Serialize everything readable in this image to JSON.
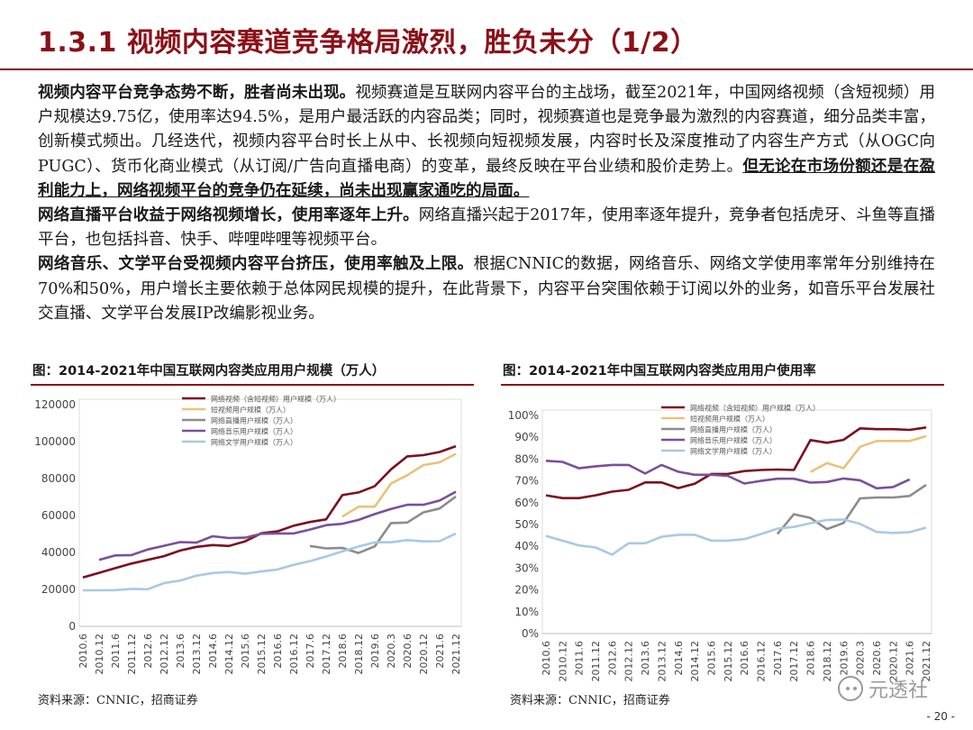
{
  "header": {
    "title": "1.3.1 视频内容赛道竞争格局激烈，胜负未分（1/2）"
  },
  "paragraphs": [
    {
      "lead": "视频内容平台竞争态势不断，胜者尚未出现。",
      "text": "视频赛道是互联网内容平台的主战场，截至2021年，中国网络视频（含短视频）用户规模达9.75亿，使用率达94.5%，是用户最活跃的内容品类；同时，视频赛道也是竞争最为激烈的内容赛道，细分品类丰富，创新模式频出。几经迭代，视频内容平台时长上从中、长视频向短视频发展，内容时长及深度推动了内容生产方式（从OGC向PUGC）、货币化商业模式（从订阅/广告向直播电商）的变革，最终反映在平台业绩和股价走势上。",
      "emphasis": "但无论在市场份额还是在盈利能力上，网络视频平台的竞争仍在延续，尚未出现赢家通吃的局面。"
    },
    {
      "lead": "网络直播平台收益于网络视频增长，使用率逐年上升。",
      "text": "网络直播兴起于2017年，使用率逐年提升，竞争者包括虎牙、斗鱼等直播平台，也包括抖音、快手、哔哩哔哩等视频平台。",
      "emphasis": ""
    },
    {
      "lead": "网络音乐、文学平台受视频内容平台挤压，使用率触及上限。",
      "text": "根据CNNIC的数据，网络音乐、网络文学使用率常年分别维持在70%和50%，用户增长主要依赖于总体网民规模的提升，在此背景下，内容平台突围依赖于订阅以外的业务，如音乐平台发展社交直播、文学平台发展IP改编影视业务。",
      "emphasis": ""
    }
  ],
  "figures": {
    "left_title": "图：2014-2021年中国互联网内容类应用用户规模（万人）",
    "right_title": "图：2014-2021年中国互联网内容类应用用户使用率",
    "left_source": "资料来源：CNNIC，招商证券",
    "right_source": "资料来源：CNNIC，招商证券"
  },
  "footer": {
    "page": "- 20 -",
    "watermark": "元透社"
  },
  "chart_data": [
    {
      "type": "line",
      "title": "图：2014-2021年中国互联网内容类应用用户规模（万人）",
      "x": [
        "2010.6",
        "2010.12",
        "2011.6",
        "2011.12",
        "2012.6",
        "2012.12",
        "2013.6",
        "2013.12",
        "2014.6",
        "2014.12",
        "2015.6",
        "2015.12",
        "2016.6",
        "2016.12",
        "2017.6",
        "2017.12",
        "2018.6",
        "2018.12",
        "2019.6",
        "2020.3",
        "2020.6",
        "2020.12",
        "2021.6",
        "2021.12"
      ],
      "ylim": [
        0,
        120000
      ],
      "yticks": [
        "0",
        "20000",
        "40000",
        "60000",
        "80000",
        "100000",
        "120000"
      ],
      "legend_position": "top-right",
      "series": [
        {
          "name": "网络视频（含短视频）用户规模（万人）",
          "color": "#7b1020",
          "values": [
            26500,
            29000,
            31500,
            34000,
            36000,
            38000,
            41000,
            43000,
            44000,
            43500,
            46000,
            50400,
            51400,
            54500,
            56500,
            57900,
            71000,
            72500,
            75900,
            85000,
            92000,
            92700,
            94400,
            97500
          ]
        },
        {
          "name": "短视频用户规模（万人）",
          "color": "#e8c27a",
          "values": [
            null,
            null,
            null,
            null,
            null,
            null,
            null,
            null,
            null,
            null,
            null,
            null,
            null,
            null,
            null,
            null,
            59400,
            64800,
            64800,
            77300,
            81800,
            87300,
            88800,
            93400
          ]
        },
        {
          "name": "网络直播用户规模（万人）",
          "color": "#8c8c8c",
          "values": [
            null,
            null,
            null,
            null,
            null,
            null,
            null,
            null,
            null,
            null,
            null,
            null,
            null,
            null,
            43500,
            42200,
            42500,
            39700,
            43300,
            55900,
            56200,
            61700,
            63800,
            70300
          ]
        },
        {
          "name": "网络音乐用户规模（万人）",
          "color": "#7a4f9a",
          "values": [
            null,
            36000,
            38400,
            38600,
            41600,
            43600,
            45600,
            45300,
            48800,
            47800,
            48000,
            50100,
            50300,
            50300,
            52400,
            54800,
            55500,
            57600,
            60800,
            63500,
            65800,
            65800,
            68100,
            72900
          ]
        },
        {
          "name": "网络文学用户规模（万人）",
          "color": "#a9c8e6",
          "values": [
            19500,
            19500,
            19600,
            20300,
            20100,
            23400,
            24800,
            27400,
            28900,
            29400,
            28500,
            29700,
            30800,
            33300,
            35300,
            37800,
            40600,
            43200,
            45500,
            45500,
            46700,
            46000,
            46100,
            50200
          ]
        }
      ]
    },
    {
      "type": "line",
      "title": "图：2014-2021年中国互联网内容类应用用户使用率",
      "x": [
        "2010.6",
        "2010.12",
        "2011.6",
        "2011.12",
        "2012.6",
        "2012.12",
        "2013.6",
        "2013.12",
        "2014.6",
        "2014.12",
        "2015.6",
        "2015.12",
        "2016.6",
        "2016.12",
        "2017.6",
        "2017.12",
        "2018.6",
        "2018.12",
        "2019.6",
        "2020.3",
        "2020.6",
        "2020.12",
        "2021.6",
        "2021.12"
      ],
      "ylim": [
        0,
        100
      ],
      "yticks": [
        "0%",
        "10%",
        "20%",
        "30%",
        "40%",
        "50%",
        "60%",
        "70%",
        "80%",
        "90%",
        "100%"
      ],
      "legend_position": "top-right",
      "series": [
        {
          "name": "网络视频（含短视频）用户规模（万人）",
          "color": "#7b1020",
          "values": [
            63.4,
            62.1,
            62.1,
            63.4,
            65.1,
            65.9,
            69.3,
            69.3,
            66.7,
            68.7,
            73.2,
            73.2,
            74.5,
            75.0,
            75.2,
            75.0,
            88.7,
            87.5,
            88.8,
            94.1,
            93.7,
            93.7,
            93.4,
            94.5
          ]
        },
        {
          "name": "短视频用户规模（万人）",
          "color": "#e8c27a",
          "values": [
            null,
            null,
            null,
            null,
            null,
            null,
            null,
            null,
            null,
            null,
            null,
            null,
            null,
            null,
            null,
            null,
            74.1,
            78.2,
            75.8,
            85.6,
            88.3,
            88.3,
            88.3,
            90.5
          ]
        },
        {
          "name": "网络直播用户规模（万人）",
          "color": "#8c8c8c",
          "values": [
            null,
            null,
            null,
            null,
            null,
            null,
            null,
            null,
            null,
            null,
            null,
            null,
            null,
            null,
            45.6,
            54.7,
            53.0,
            47.9,
            50.7,
            62.0,
            62.4,
            62.4,
            63.1,
            68.2
          ]
        },
        {
          "name": "网络音乐用户规模（万人）",
          "color": "#7a4f9a",
          "values": [
            79.2,
            78.7,
            75.8,
            76.7,
            77.3,
            77.3,
            73.4,
            77.3,
            74.2,
            72.8,
            72.8,
            72.3,
            68.8,
            70.0,
            71.0,
            71.0,
            69.2,
            69.5,
            71.1,
            70.3,
            66.6,
            67.2,
            70.7,
            null
          ]
        },
        {
          "name": "网络文学用户规模（万人）",
          "color": "#a9c8e6",
          "values": [
            44.8,
            42.6,
            40.4,
            39.5,
            36.2,
            41.4,
            41.4,
            44.4,
            45.3,
            45.3,
            42.6,
            42.6,
            43.3,
            45.6,
            48.1,
            48.9,
            50.6,
            52.1,
            52.3,
            50.3,
            46.6,
            46.1,
            46.5,
            48.6
          ]
        }
      ]
    }
  ]
}
